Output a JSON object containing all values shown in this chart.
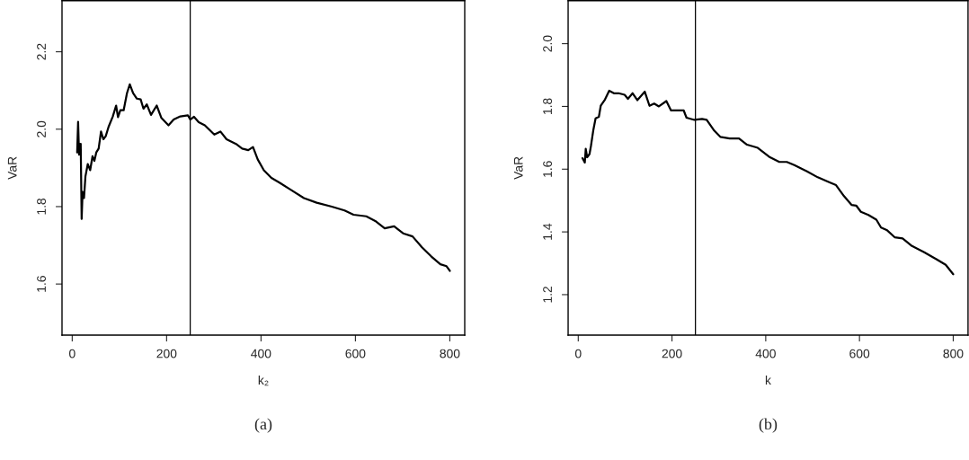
{
  "chart_data": [
    {
      "type": "line",
      "xlabel": "k₂",
      "ylabel": "VaR",
      "annotations": [
        "(a)"
      ],
      "xlim": [
        -21.6,
        831.6
      ],
      "xticks": [
        0,
        200,
        400,
        600,
        800
      ],
      "ylim": [
        1.468,
        2.332
      ],
      "yticks": [
        1.6,
        1.8,
        {
          "value": 2,
          "label": "2.0"
        },
        2.2
      ],
      "grid": false,
      "legend": false,
      "marker": "none",
      "line_style": "solid",
      "ref_lines": [
        {
          "axis": "x",
          "value": 250,
          "color": "#000000",
          "line_style": "solid"
        }
      ],
      "series": [
        {
          "color": "#000000",
          "x": [
            10.5,
            12.5,
            14.5,
            16,
            17,
            18,
            20,
            22,
            25,
            28,
            33,
            38,
            43,
            47,
            51,
            56,
            61,
            66,
            71,
            77,
            86,
            93,
            97,
            102,
            109,
            116,
            122,
            129,
            137,
            145,
            151,
            158,
            167,
            179,
            189,
            204,
            215,
            229,
            245,
            250,
            258,
            268,
            281,
            301,
            314,
            327,
            347,
            360,
            373,
            383,
            393,
            406,
            422,
            439,
            465,
            491,
            518,
            550,
            577,
            596,
            623,
            642,
            662,
            682,
            701,
            721,
            741,
            761,
            780,
            793,
            800
          ],
          "values": [
            1.94,
            2.019,
            1.934,
            1.962,
            1.938,
            1.962,
            1.768,
            1.838,
            1.822,
            1.878,
            1.91,
            1.894,
            1.93,
            1.918,
            1.94,
            1.95,
            1.994,
            1.974,
            1.982,
            2.006,
            2.033,
            2.061,
            2.031,
            2.049,
            2.049,
            2.093,
            2.116,
            2.093,
            2.079,
            2.077,
            2.053,
            2.064,
            2.037,
            2.061,
            2.029,
            2.01,
            2.025,
            2.033,
            2.036,
            2.025,
            2.032,
            2.018,
            2.01,
            1.986,
            1.994,
            1.974,
            1.962,
            1.95,
            1.946,
            1.954,
            1.922,
            1.894,
            1.874,
            1.862,
            1.842,
            1.822,
            1.81,
            1.8,
            1.79,
            1.779,
            1.775,
            1.763,
            1.744,
            1.749,
            1.731,
            1.723,
            1.695,
            1.671,
            1.651,
            1.646,
            1.634
          ]
        }
      ]
    },
    {
      "type": "line",
      "xlabel": "k",
      "ylabel": "VaR",
      "annotations": [
        "(b)"
      ],
      "xlim": [
        -21.6,
        831.6
      ],
      "xticks": [
        0,
        200,
        400,
        600,
        800
      ],
      "ylim": [
        1.071,
        2.137
      ],
      "yticks": [
        1.2,
        1.4,
        1.6,
        1.8,
        {
          "value": 2,
          "label": "2.0"
        }
      ],
      "grid": false,
      "legend": false,
      "marker": "none",
      "line_style": "solid",
      "ref_lines": [
        {
          "axis": "x",
          "value": 250,
          "color": "#000000",
          "line_style": "solid"
        }
      ],
      "series": [
        {
          "color": "#000000",
          "x": [
            9,
            14,
            16,
            19,
            24,
            27,
            32,
            37,
            44,
            48,
            57,
            66,
            76,
            86,
            99,
            106,
            116,
            126,
            142,
            152,
            162,
            172,
            188,
            198,
            211,
            225,
            231,
            248,
            264,
            274,
            290,
            303,
            323,
            343,
            360,
            383,
            409,
            429,
            445,
            461,
            488,
            511,
            534,
            550,
            567,
            583,
            593,
            603,
            619,
            636,
            646,
            659,
            675,
            692,
            712,
            738,
            764,
            784,
            800
          ],
          "values": [
            1.635,
            1.621,
            1.665,
            1.638,
            1.648,
            1.673,
            1.723,
            1.762,
            1.767,
            1.802,
            1.822,
            1.85,
            1.842,
            1.842,
            1.837,
            1.824,
            1.842,
            1.82,
            1.847,
            1.802,
            1.809,
            1.8,
            1.817,
            1.787,
            1.787,
            1.787,
            1.764,
            1.757,
            1.76,
            1.757,
            1.723,
            1.703,
            1.698,
            1.698,
            1.678,
            1.668,
            1.638,
            1.623,
            1.623,
            1.613,
            1.593,
            1.574,
            1.559,
            1.549,
            1.514,
            1.486,
            1.484,
            1.464,
            1.454,
            1.439,
            1.414,
            1.405,
            1.383,
            1.379,
            1.355,
            1.335,
            1.313,
            1.295,
            1.265
          ]
        }
      ]
    }
  ]
}
